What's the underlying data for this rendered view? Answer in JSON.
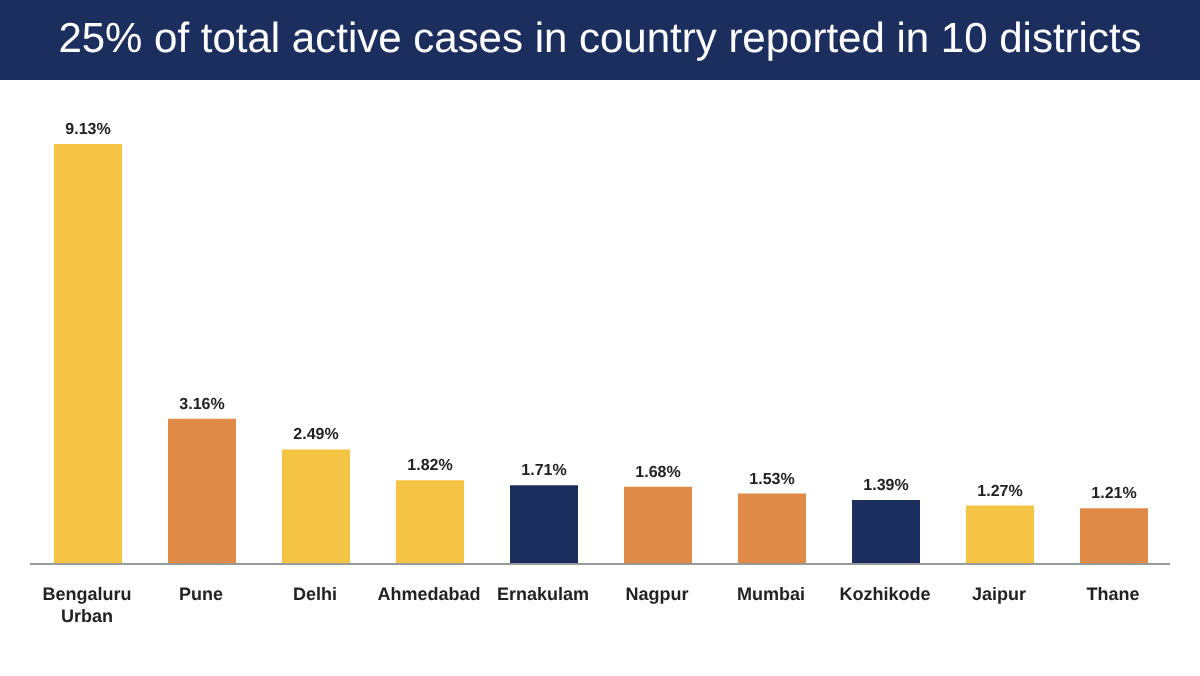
{
  "chart_data": {
    "type": "bar",
    "title": "25% of total active cases in country reported in 10 districts",
    "categories": [
      "Bengaluru Urban",
      "Pune",
      "Delhi",
      "Ahmedabad",
      "Ernakulam",
      "Nagpur",
      "Mumbai",
      "Kozhikode",
      "Jaipur",
      "Thane"
    ],
    "values": [
      9.13,
      3.16,
      2.49,
      1.82,
      1.71,
      1.68,
      1.53,
      1.39,
      1.27,
      1.21
    ],
    "value_labels": [
      "9.13%",
      "3.16%",
      "2.49%",
      "1.82%",
      "1.71%",
      "1.68%",
      "1.53%",
      "1.39%",
      "1.27%",
      "1.21%"
    ],
    "colors": [
      "#f6c444",
      "#e08a48",
      "#f6c444",
      "#f6c444",
      "#1c2e5e",
      "#e08a48",
      "#e08a48",
      "#1c2e5e",
      "#f6c444",
      "#e08a48"
    ],
    "grid": false,
    "legend": false
  }
}
